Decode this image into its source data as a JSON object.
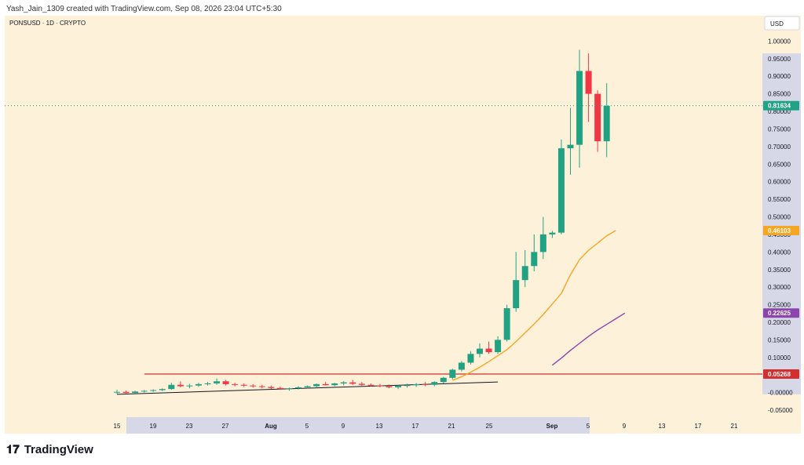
{
  "header": {
    "attribution": "Yash_Jain_1309 created with TradingView.com, Sep 08, 2026 23:04 UTC+5:30",
    "symbol": "PONSUSD · 1D · CRYPTO",
    "currency_button": "USD"
  },
  "footer": {
    "logo_text": "TradingView"
  },
  "colors": {
    "background": "#fdf1d9",
    "up": "#22a284",
    "down": "#f23645",
    "ema_fast": "#f5a623",
    "ema_slow": "#8e44ad",
    "horizontal_line": "#d32f2f",
    "trendline": "#131722",
    "current_price": "#22a284",
    "axis_highlight": "#d6d8e7"
  },
  "chart_data": {
    "type": "candlestick",
    "x_tick_labels": [
      "15",
      "19",
      "23",
      "27",
      "Aug",
      "5",
      "9",
      "13",
      "17",
      "21",
      "25",
      "Sep",
      "5",
      "9",
      "13",
      "17",
      "21"
    ],
    "y_tick_labels": [
      "-0.05000",
      "-0.00000",
      "0.05000",
      "0.10000",
      "0.15000",
      "0.20000",
      "0.25000",
      "0.30000",
      "0.35000",
      "0.40000",
      "0.45000",
      "0.50000",
      "0.55000",
      "0.60000",
      "0.65000",
      "0.70000",
      "0.75000",
      "0.80000",
      "0.85000",
      "0.90000",
      "0.95000",
      "1.00000"
    ],
    "ylim": [
      -0.07,
      1.05
    ],
    "candles": [
      {
        "o": 0.0,
        "h": 0.008,
        "l": -0.004,
        "c": 0.002
      },
      {
        "o": 0.002,
        "h": 0.006,
        "l": -0.002,
        "c": -0.001
      },
      {
        "o": -0.001,
        "h": 0.005,
        "l": -0.003,
        "c": 0.003
      },
      {
        "o": 0.003,
        "h": 0.007,
        "l": 0.0,
        "c": 0.005
      },
      {
        "o": 0.005,
        "h": 0.009,
        "l": 0.002,
        "c": 0.007
      },
      {
        "o": 0.007,
        "h": 0.012,
        "l": 0.004,
        "c": 0.01
      },
      {
        "o": 0.01,
        "h": 0.028,
        "l": 0.008,
        "c": 0.022
      },
      {
        "o": 0.022,
        "h": 0.032,
        "l": 0.015,
        "c": 0.018
      },
      {
        "o": 0.018,
        "h": 0.025,
        "l": 0.012,
        "c": 0.02
      },
      {
        "o": 0.02,
        "h": 0.028,
        "l": 0.016,
        "c": 0.024
      },
      {
        "o": 0.024,
        "h": 0.03,
        "l": 0.02,
        "c": 0.026
      },
      {
        "o": 0.026,
        "h": 0.04,
        "l": 0.022,
        "c": 0.032
      },
      {
        "o": 0.032,
        "h": 0.036,
        "l": 0.02,
        "c": 0.024
      },
      {
        "o": 0.024,
        "h": 0.028,
        "l": 0.018,
        "c": 0.022
      },
      {
        "o": 0.022,
        "h": 0.026,
        "l": 0.016,
        "c": 0.02
      },
      {
        "o": 0.02,
        "h": 0.024,
        "l": 0.014,
        "c": 0.018
      },
      {
        "o": 0.018,
        "h": 0.022,
        "l": 0.012,
        "c": 0.016
      },
      {
        "o": 0.016,
        "h": 0.02,
        "l": 0.01,
        "c": 0.013
      },
      {
        "o": 0.013,
        "h": 0.017,
        "l": 0.008,
        "c": 0.01
      },
      {
        "o": 0.01,
        "h": 0.014,
        "l": 0.005,
        "c": 0.012
      },
      {
        "o": 0.012,
        "h": 0.018,
        "l": 0.009,
        "c": 0.015
      },
      {
        "o": 0.015,
        "h": 0.02,
        "l": 0.012,
        "c": 0.018
      },
      {
        "o": 0.018,
        "h": 0.026,
        "l": 0.014,
        "c": 0.024
      },
      {
        "o": 0.024,
        "h": 0.03,
        "l": 0.02,
        "c": 0.021
      },
      {
        "o": 0.021,
        "h": 0.028,
        "l": 0.018,
        "c": 0.026
      },
      {
        "o": 0.026,
        "h": 0.033,
        "l": 0.02,
        "c": 0.029
      },
      {
        "o": 0.029,
        "h": 0.036,
        "l": 0.022,
        "c": 0.025
      },
      {
        "o": 0.025,
        "h": 0.03,
        "l": 0.019,
        "c": 0.022
      },
      {
        "o": 0.022,
        "h": 0.026,
        "l": 0.017,
        "c": 0.02
      },
      {
        "o": 0.02,
        "h": 0.025,
        "l": 0.015,
        "c": 0.018
      },
      {
        "o": 0.018,
        "h": 0.023,
        "l": 0.012,
        "c": 0.015
      },
      {
        "o": 0.015,
        "h": 0.021,
        "l": 0.01,
        "c": 0.019
      },
      {
        "o": 0.019,
        "h": 0.025,
        "l": 0.014,
        "c": 0.021
      },
      {
        "o": 0.021,
        "h": 0.027,
        "l": 0.016,
        "c": 0.024
      },
      {
        "o": 0.024,
        "h": 0.03,
        "l": 0.018,
        "c": 0.022
      },
      {
        "o": 0.022,
        "h": 0.032,
        "l": 0.018,
        "c": 0.03
      },
      {
        "o": 0.03,
        "h": 0.045,
        "l": 0.026,
        "c": 0.042
      },
      {
        "o": 0.042,
        "h": 0.068,
        "l": 0.038,
        "c": 0.065
      },
      {
        "o": 0.065,
        "h": 0.09,
        "l": 0.06,
        "c": 0.085
      },
      {
        "o": 0.085,
        "h": 0.118,
        "l": 0.08,
        "c": 0.11
      },
      {
        "o": 0.11,
        "h": 0.14,
        "l": 0.1,
        "c": 0.125
      },
      {
        "o": 0.125,
        "h": 0.145,
        "l": 0.11,
        "c": 0.115
      },
      {
        "o": 0.115,
        "h": 0.16,
        "l": 0.11,
        "c": 0.15
      },
      {
        "o": 0.15,
        "h": 0.25,
        "l": 0.145,
        "c": 0.24
      },
      {
        "o": 0.24,
        "h": 0.4,
        "l": 0.23,
        "c": 0.32
      },
      {
        "o": 0.32,
        "h": 0.405,
        "l": 0.3,
        "c": 0.36
      },
      {
        "o": 0.36,
        "h": 0.45,
        "l": 0.345,
        "c": 0.4
      },
      {
        "o": 0.4,
        "h": 0.5,
        "l": 0.38,
        "c": 0.45
      },
      {
        "o": 0.45,
        "h": 0.46,
        "l": 0.44,
        "c": 0.455
      },
      {
        "o": 0.455,
        "h": 0.72,
        "l": 0.45,
        "c": 0.695
      },
      {
        "o": 0.695,
        "h": 0.81,
        "l": 0.62,
        "c": 0.705
      },
      {
        "o": 0.705,
        "h": 0.975,
        "l": 0.64,
        "c": 0.915
      },
      {
        "o": 0.915,
        "h": 0.965,
        "l": 0.77,
        "c": 0.85
      },
      {
        "o": 0.85,
        "h": 0.86,
        "l": 0.685,
        "c": 0.715
      },
      {
        "o": 0.715,
        "h": 0.88,
        "l": 0.67,
        "c": 0.816
      }
    ],
    "ema_fast": {
      "start_index": 37,
      "values": [
        0.035,
        0.045,
        0.058,
        0.072,
        0.088,
        0.105,
        0.122,
        0.145,
        0.17,
        0.195,
        0.222,
        0.252,
        0.282,
        0.335,
        0.378,
        0.405,
        0.425,
        0.446,
        0.461
      ]
    },
    "ema_slow": {
      "start_index": 48,
      "values": [
        0.078,
        0.098,
        0.12,
        0.14,
        0.16,
        0.178,
        0.194,
        0.21,
        0.226
      ]
    },
    "horizontal_line": {
      "value": 0.05268
    },
    "trendline": {
      "from": [
        0,
        -0.005
      ],
      "to": [
        42,
        0.03
      ]
    },
    "price_labels": [
      {
        "value": 0.81634,
        "label": "0.81634",
        "color": "#22a284"
      },
      {
        "value": 0.46103,
        "label": "0.46103",
        "color": "#f5a623"
      },
      {
        "value": 0.22625,
        "label": "0.22625",
        "color": "#8e44ad"
      },
      {
        "value": 0.05268,
        "label": "0.05268",
        "color": "#d32f2f"
      }
    ]
  }
}
